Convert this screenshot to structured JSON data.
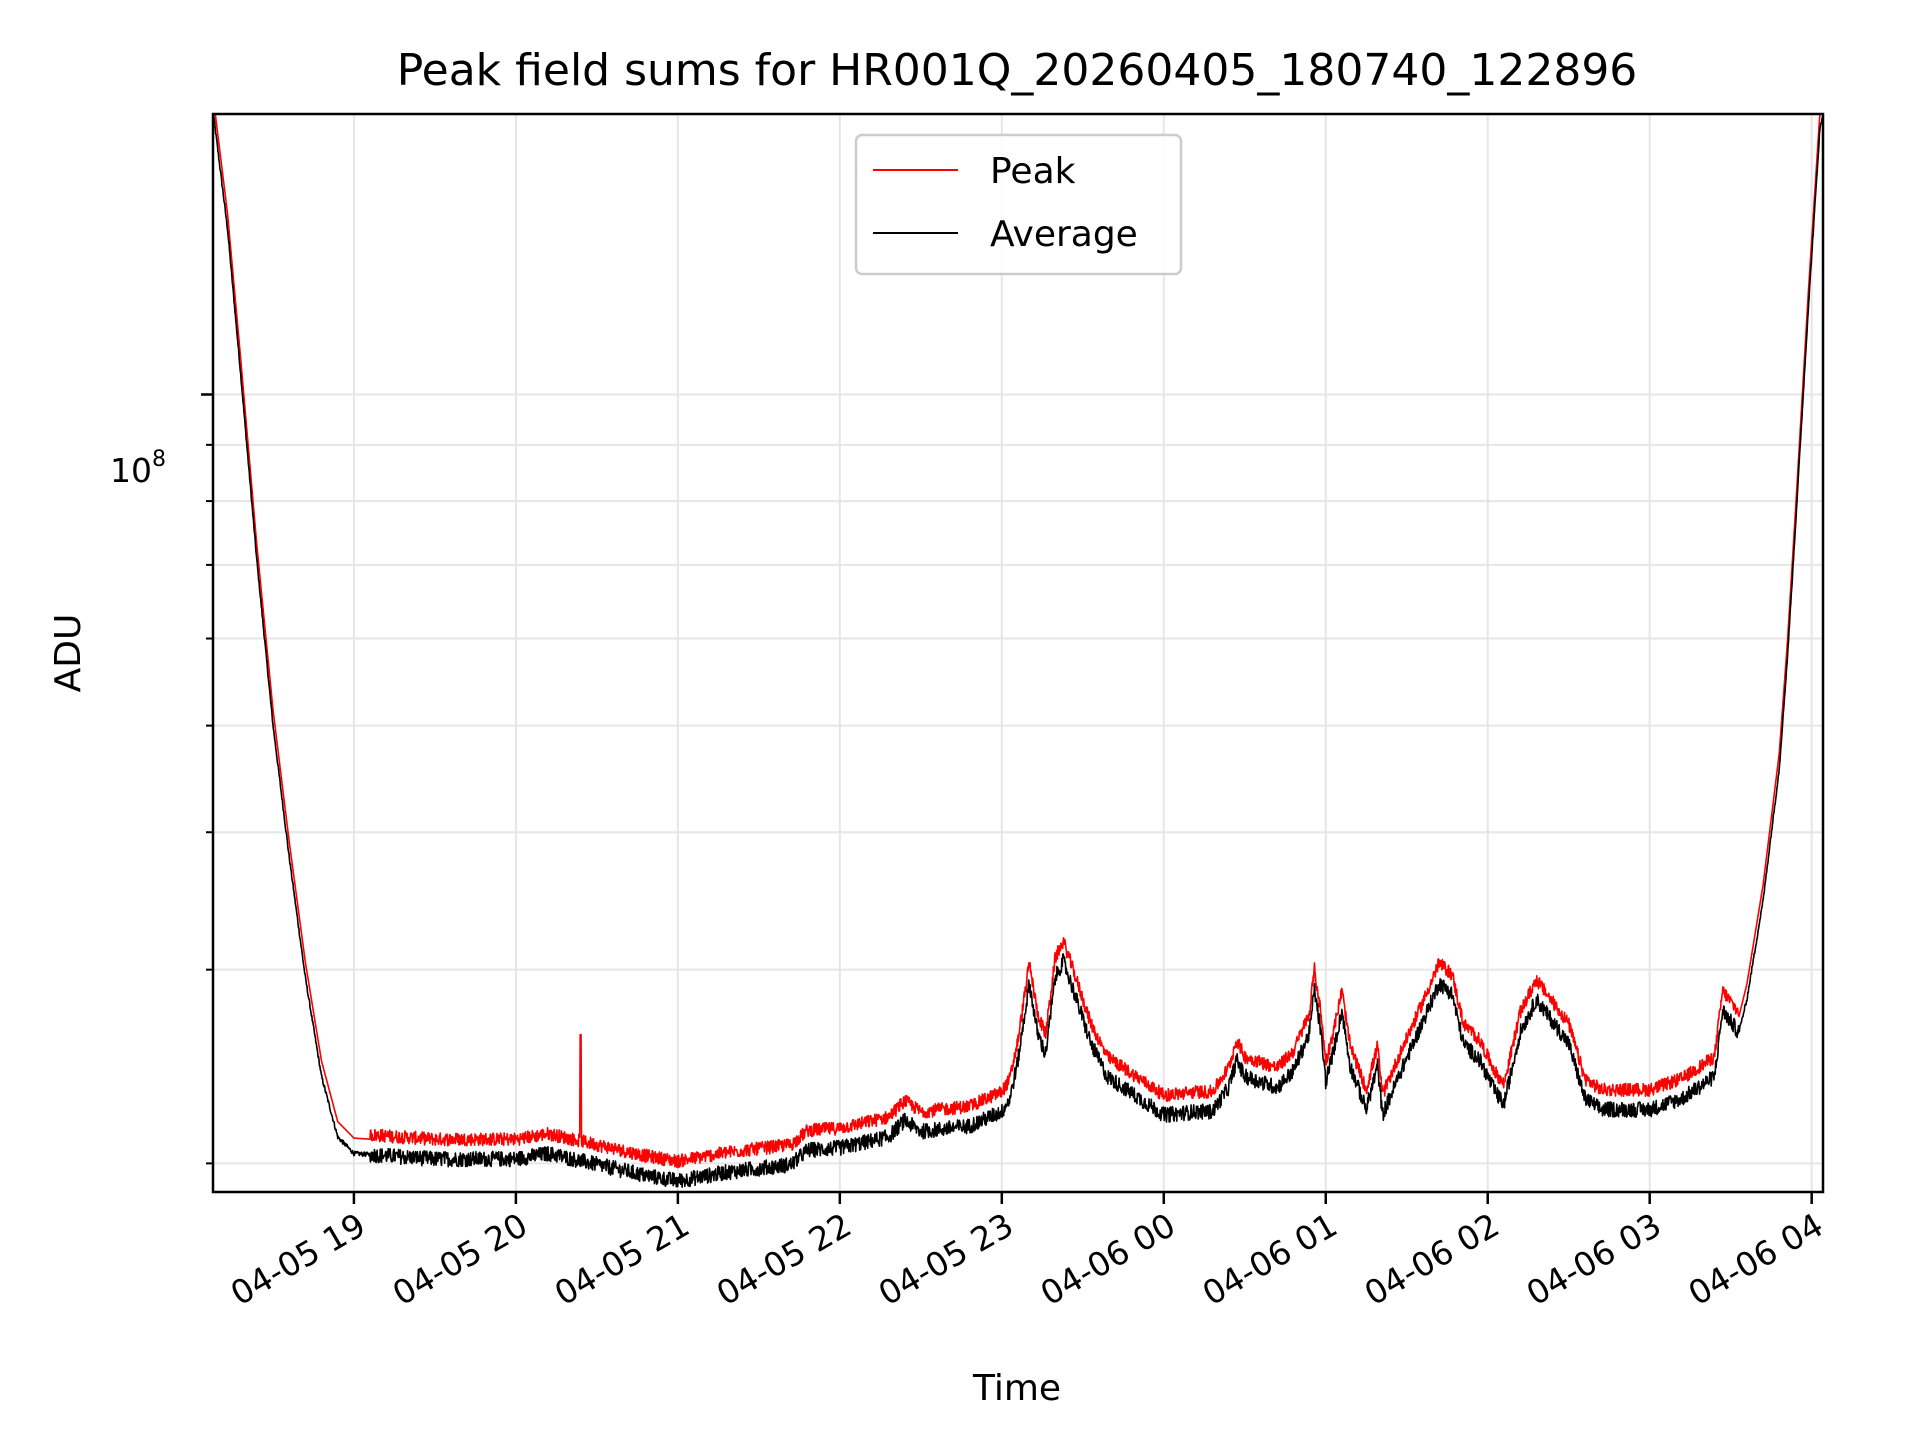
{
  "chart_data": {
    "type": "line",
    "title": "Peak field sums for HR001Q_20260405_180740_122896",
    "xlabel": "Time",
    "ylabel": "ADU",
    "x_unit": "hours since 2026-04-05 18:00",
    "xlim": [
      18.13,
      28.07
    ],
    "ylim_log10": [
      7.275,
      8.255
    ],
    "y_major_tick": {
      "value": 100000000,
      "label_base": "10",
      "label_exp": "8"
    },
    "y_minor_ticks": [
      20000000,
      30000000,
      40000000,
      50000000,
      60000000,
      70000000,
      80000000,
      90000000,
      200000000
    ],
    "x_ticks": [
      {
        "x": 19,
        "label": "04-05 19"
      },
      {
        "x": 20,
        "label": "04-05 20"
      },
      {
        "x": 21,
        "label": "04-05 21"
      },
      {
        "x": 22,
        "label": "04-05 22"
      },
      {
        "x": 23,
        "label": "04-05 23"
      },
      {
        "x": 24,
        "label": "04-06 00"
      },
      {
        "x": 25,
        "label": "04-06 01"
      },
      {
        "x": 26,
        "label": "04-06 02"
      },
      {
        "x": 27,
        "label": "04-06 03"
      },
      {
        "x": 28,
        "label": "04-06 04"
      }
    ],
    "grid": true,
    "legend_position": "top-center",
    "series": [
      {
        "name": "Peak",
        "color": "#ff0000",
        "offset_log10": 0.012
      },
      {
        "name": "Average",
        "color": "#000000",
        "offset_log10": 0
      }
    ],
    "baseline_log10": [
      [
        18.12,
        8.27
      ],
      [
        18.22,
        8.15
      ],
      [
        18.3,
        8.02
      ],
      [
        18.4,
        7.85
      ],
      [
        18.5,
        7.7
      ],
      [
        18.6,
        7.58
      ],
      [
        18.7,
        7.47
      ],
      [
        18.8,
        7.38
      ],
      [
        18.9,
        7.325
      ],
      [
        19.0,
        7.31
      ],
      [
        19.5,
        7.305
      ],
      [
        20.0,
        7.305
      ],
      [
        20.2,
        7.31
      ],
      [
        20.5,
        7.3
      ],
      [
        20.8,
        7.29
      ],
      [
        21.0,
        7.285
      ],
      [
        21.3,
        7.293
      ],
      [
        21.7,
        7.3
      ],
      [
        21.8,
        7.313
      ],
      [
        22.0,
        7.315
      ],
      [
        22.3,
        7.325
      ],
      [
        22.4,
        7.34
      ],
      [
        22.5,
        7.33
      ],
      [
        22.8,
        7.335
      ],
      [
        23.0,
        7.348
      ],
      [
        23.05,
        7.36
      ],
      [
        23.1,
        7.395
      ],
      [
        23.17,
        7.465
      ],
      [
        23.22,
        7.42
      ],
      [
        23.27,
        7.4
      ],
      [
        23.33,
        7.47
      ],
      [
        23.38,
        7.485
      ],
      [
        23.45,
        7.455
      ],
      [
        23.55,
        7.41
      ],
      [
        23.65,
        7.38
      ],
      [
        23.8,
        7.365
      ],
      [
        24.0,
        7.345
      ],
      [
        24.2,
        7.348
      ],
      [
        24.3,
        7.348
      ],
      [
        24.4,
        7.37
      ],
      [
        24.45,
        7.395
      ],
      [
        24.5,
        7.38
      ],
      [
        24.6,
        7.375
      ],
      [
        24.7,
        7.37
      ],
      [
        24.8,
        7.385
      ],
      [
        24.9,
        7.42
      ],
      [
        24.93,
        7.46
      ],
      [
        24.97,
        7.42
      ],
      [
        25.0,
        7.375
      ],
      [
        25.05,
        7.405
      ],
      [
        25.1,
        7.44
      ],
      [
        25.15,
        7.39
      ],
      [
        25.25,
        7.35
      ],
      [
        25.32,
        7.39
      ],
      [
        25.35,
        7.345
      ],
      [
        25.45,
        7.38
      ],
      [
        25.6,
        7.43
      ],
      [
        25.7,
        7.465
      ],
      [
        25.78,
        7.455
      ],
      [
        25.85,
        7.41
      ],
      [
        25.95,
        7.395
      ],
      [
        26.05,
        7.365
      ],
      [
        26.1,
        7.355
      ],
      [
        26.2,
        7.42
      ],
      [
        26.3,
        7.45
      ],
      [
        26.4,
        7.43
      ],
      [
        26.5,
        7.41
      ],
      [
        26.6,
        7.36
      ],
      [
        26.7,
        7.35
      ],
      [
        27.0,
        7.35
      ],
      [
        27.2,
        7.36
      ],
      [
        27.3,
        7.37
      ],
      [
        27.4,
        7.38
      ],
      [
        27.45,
        7.44
      ],
      [
        27.55,
        7.42
      ],
      [
        27.6,
        7.45
      ],
      [
        27.7,
        7.54
      ],
      [
        27.8,
        7.66
      ],
      [
        27.85,
        7.76
      ],
      [
        27.9,
        7.88
      ],
      [
        27.98,
        8.08
      ],
      [
        28.05,
        8.24
      ],
      [
        28.1,
        8.28
      ]
    ]
  }
}
